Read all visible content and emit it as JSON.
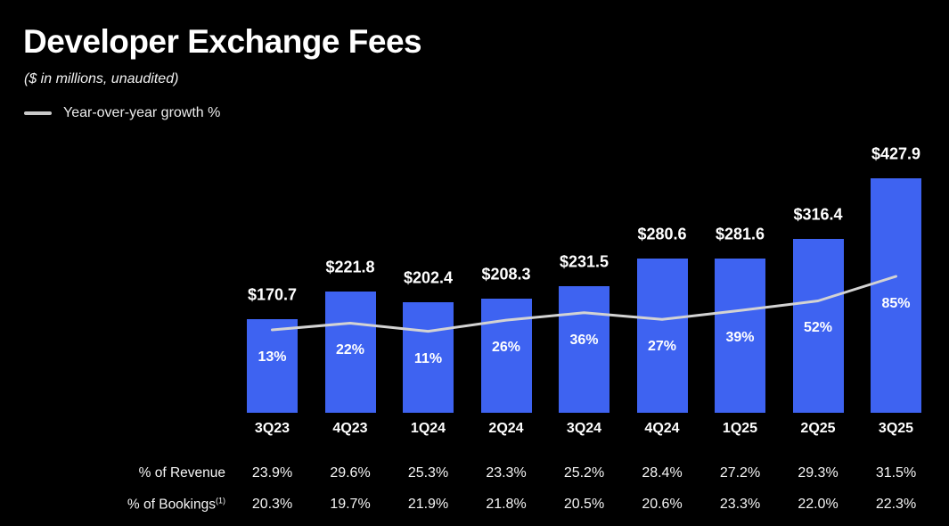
{
  "header": {
    "title": "Developer Exchange Fees",
    "subtitle": "($ in millions, unaudited)",
    "legend_label": "Year-over-year growth %"
  },
  "colors": {
    "background": "#000000",
    "bar": "#3e63f1",
    "line": "#d3d3d3",
    "text": "#ffffff"
  },
  "chart_data": {
    "type": "bar",
    "title": "Developer Exchange Fees",
    "subtitle": "($ in millions, unaudited)",
    "categories": [
      "3Q23",
      "4Q23",
      "1Q24",
      "2Q24",
      "3Q24",
      "4Q24",
      "1Q25",
      "2Q25",
      "3Q25"
    ],
    "series": [
      {
        "name": "Developer Exchange Fees ($ in millions)",
        "type": "bar",
        "values": [
          170.7,
          221.8,
          202.4,
          208.3,
          231.5,
          280.6,
          281.6,
          316.4,
          427.9
        ],
        "labels": [
          "$170.7",
          "$221.8",
          "$202.4",
          "$208.3",
          "$231.5",
          "$280.6",
          "$281.6",
          "$316.4",
          "$427.9"
        ],
        "color": "#3e63f1"
      },
      {
        "name": "Year-over-year growth %",
        "type": "line",
        "values": [
          13,
          22,
          11,
          26,
          36,
          27,
          39,
          52,
          85
        ],
        "labels": [
          "13%",
          "22%",
          "11%",
          "26%",
          "36%",
          "27%",
          "39%",
          "52%",
          "85%"
        ],
        "color": "#d3d3d3"
      }
    ],
    "table_rows": [
      {
        "label": "% of Revenue",
        "superscript": "",
        "values": [
          "23.9%",
          "29.6%",
          "25.3%",
          "23.3%",
          "25.2%",
          "28.4%",
          "27.2%",
          "29.3%",
          "31.5%"
        ]
      },
      {
        "label": "% of Bookings",
        "superscript": "(1)",
        "values": [
          "20.3%",
          "19.7%",
          "21.9%",
          "21.8%",
          "20.5%",
          "20.6%",
          "23.3%",
          "22.0%",
          "22.3%"
        ]
      }
    ],
    "ylim": [
      0,
      450
    ],
    "growth_axis_range": [
      0,
      100
    ],
    "grid": false,
    "legend_position": "top-left"
  }
}
